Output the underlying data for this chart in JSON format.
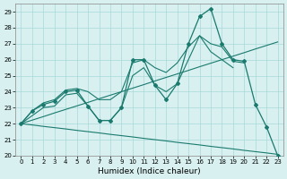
{
  "xlabel": "Humidex (Indice chaleur)",
  "x_values": [
    0,
    1,
    2,
    3,
    4,
    5,
    6,
    7,
    8,
    9,
    10,
    11,
    12,
    13,
    14,
    15,
    16,
    17,
    18,
    19,
    20,
    21,
    22,
    23
  ],
  "line_main": [
    22,
    22.8,
    23.2,
    23.4,
    24.0,
    24.1,
    23.1,
    22.2,
    22.2,
    23.0,
    26.0,
    26.0,
    24.4,
    23.5,
    24.5,
    27.0,
    28.7,
    29.2,
    27.0,
    26.0,
    25.9,
    23.2,
    21.8,
    20.0
  ],
  "line_reg_up": [
    22.0,
    22.22,
    22.44,
    22.67,
    22.89,
    23.11,
    23.33,
    23.56,
    23.78,
    24.0,
    24.22,
    24.44,
    24.67,
    24.89,
    25.11,
    25.33,
    25.56,
    25.78,
    26.0,
    26.22,
    26.44,
    26.67,
    26.89,
    27.11
  ],
  "line_reg_down": [
    22.0,
    21.92,
    21.83,
    21.75,
    21.67,
    21.58,
    21.5,
    21.42,
    21.33,
    21.25,
    21.17,
    21.08,
    21.0,
    20.92,
    20.83,
    20.75,
    20.67,
    20.58,
    20.5,
    20.42,
    20.33,
    20.25,
    20.17,
    20.08
  ],
  "line_upper": [
    22.0,
    22.8,
    23.3,
    23.5,
    24.1,
    24.2,
    24.0,
    23.5,
    23.5,
    24.0,
    25.8,
    26.0,
    25.5,
    25.2,
    25.8,
    26.8,
    27.5,
    27.0,
    26.8,
    25.9,
    25.8,
    null,
    null,
    null
  ],
  "line_lower": [
    22.0,
    22.5,
    23.0,
    23.1,
    23.8,
    23.9,
    23.1,
    22.2,
    22.2,
    23.0,
    25.0,
    25.5,
    24.4,
    24.0,
    24.5,
    26.0,
    27.5,
    26.5,
    26.0,
    25.5,
    null,
    null,
    null,
    null
  ],
  "color": "#1a7a6e",
  "bg_color": "#d8f0f0",
  "grid_color": "#a8d8d8",
  "ylim": [
    20,
    29.5
  ],
  "xlim": [
    -0.5,
    23.5
  ],
  "yticks": [
    20,
    21,
    22,
    23,
    24,
    25,
    26,
    27,
    28,
    29
  ],
  "xticks": [
    0,
    1,
    2,
    3,
    4,
    5,
    6,
    7,
    8,
    9,
    10,
    11,
    12,
    13,
    14,
    15,
    16,
    17,
    18,
    19,
    20,
    21,
    22,
    23
  ]
}
